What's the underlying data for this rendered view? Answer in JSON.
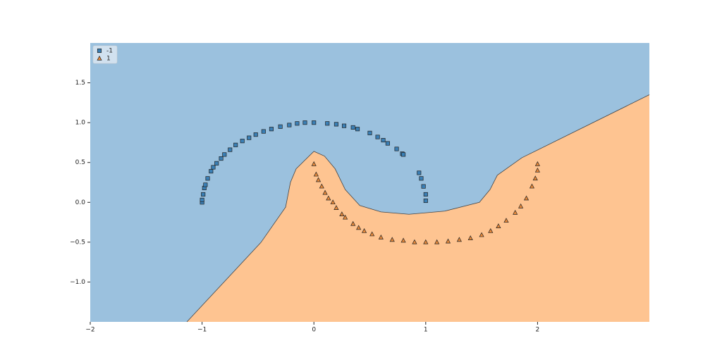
{
  "chart_data": {
    "type": "scatter",
    "xlim": [
      -2,
      3
    ],
    "ylim": [
      -1.5,
      2.0
    ],
    "xticks": [
      {
        "value": -2,
        "label": "−2"
      },
      {
        "value": -1,
        "label": "−1"
      },
      0,
      1,
      2
    ],
    "yticks": [
      {
        "value": -1.0,
        "label": "−1.0"
      },
      {
        "value": -0.5,
        "label": "−0.5"
      },
      {
        "value": 0.0,
        "label": "0.0"
      },
      {
        "value": 0.5,
        "label": "0.5"
      },
      {
        "value": 1.0,
        "label": "1.0"
      },
      {
        "value": 1.5,
        "label": "1.5"
      }
    ],
    "legend": "upper left",
    "region_colors": [
      "#9bc1de",
      "#fec491"
    ],
    "decision_boundary": {
      "x": [
        -1.136,
        -0.474,
        -0.253,
        -0.21,
        -0.159,
        0.0,
        0.095,
        0.19,
        0.28,
        0.41,
        0.6,
        0.85,
        1.17,
        1.48,
        1.575,
        1.64,
        1.86,
        3.0
      ],
      "y": [
        -1.5,
        -0.504,
        -0.06,
        0.25,
        0.42,
        0.64,
        0.58,
        0.42,
        0.16,
        -0.04,
        -0.12,
        -0.15,
        -0.11,
        0.0,
        0.16,
        0.34,
        0.56,
        1.35
      ]
    },
    "series": [
      {
        "name": "-1",
        "color": "#3a7fb5",
        "marker": "square",
        "x": [
          -1.0,
          -1.0,
          -0.99,
          -0.98,
          -0.97,
          -0.95,
          -0.92,
          -0.9,
          -0.87,
          -0.83,
          -0.8,
          -0.75,
          -0.7,
          -0.64,
          -0.58,
          -0.52,
          -0.45,
          -0.38,
          -0.3,
          -0.22,
          -0.15,
          -0.08,
          0.0,
          0.12,
          0.2,
          0.27,
          0.35,
          0.39,
          0.5,
          0.57,
          0.62,
          0.66,
          0.74,
          0.79,
          0.8,
          0.94,
          0.96,
          0.98,
          1.0,
          1.0
        ],
        "values": [
          0.0,
          0.03,
          0.1,
          0.18,
          0.22,
          0.3,
          0.39,
          0.44,
          0.49,
          0.55,
          0.6,
          0.66,
          0.72,
          0.77,
          0.81,
          0.85,
          0.89,
          0.92,
          0.95,
          0.97,
          0.99,
          1.0,
          1.0,
          0.99,
          0.98,
          0.96,
          0.94,
          0.92,
          0.87,
          0.82,
          0.78,
          0.74,
          0.67,
          0.61,
          0.6,
          0.37,
          0.3,
          0.2,
          0.1,
          0.02
        ]
      },
      {
        "name": "1",
        "color": "#e8893a",
        "marker": "triangle",
        "x": [
          0.0,
          0.02,
          0.04,
          0.07,
          0.1,
          0.13,
          0.17,
          0.2,
          0.25,
          0.28,
          0.35,
          0.4,
          0.45,
          0.52,
          0.6,
          0.7,
          0.8,
          0.9,
          1.0,
          1.1,
          1.2,
          1.3,
          1.4,
          1.5,
          1.58,
          1.65,
          1.72,
          1.8,
          1.85,
          1.9,
          1.95,
          1.98,
          2.0,
          2.0
        ],
        "values": [
          0.48,
          0.35,
          0.28,
          0.2,
          0.12,
          0.05,
          0.0,
          -0.07,
          -0.15,
          -0.19,
          -0.27,
          -0.32,
          -0.36,
          -0.4,
          -0.44,
          -0.47,
          -0.48,
          -0.5,
          -0.5,
          -0.5,
          -0.49,
          -0.47,
          -0.45,
          -0.41,
          -0.36,
          -0.3,
          -0.23,
          -0.13,
          -0.05,
          0.05,
          0.2,
          0.3,
          0.4,
          0.48
        ]
      }
    ]
  }
}
